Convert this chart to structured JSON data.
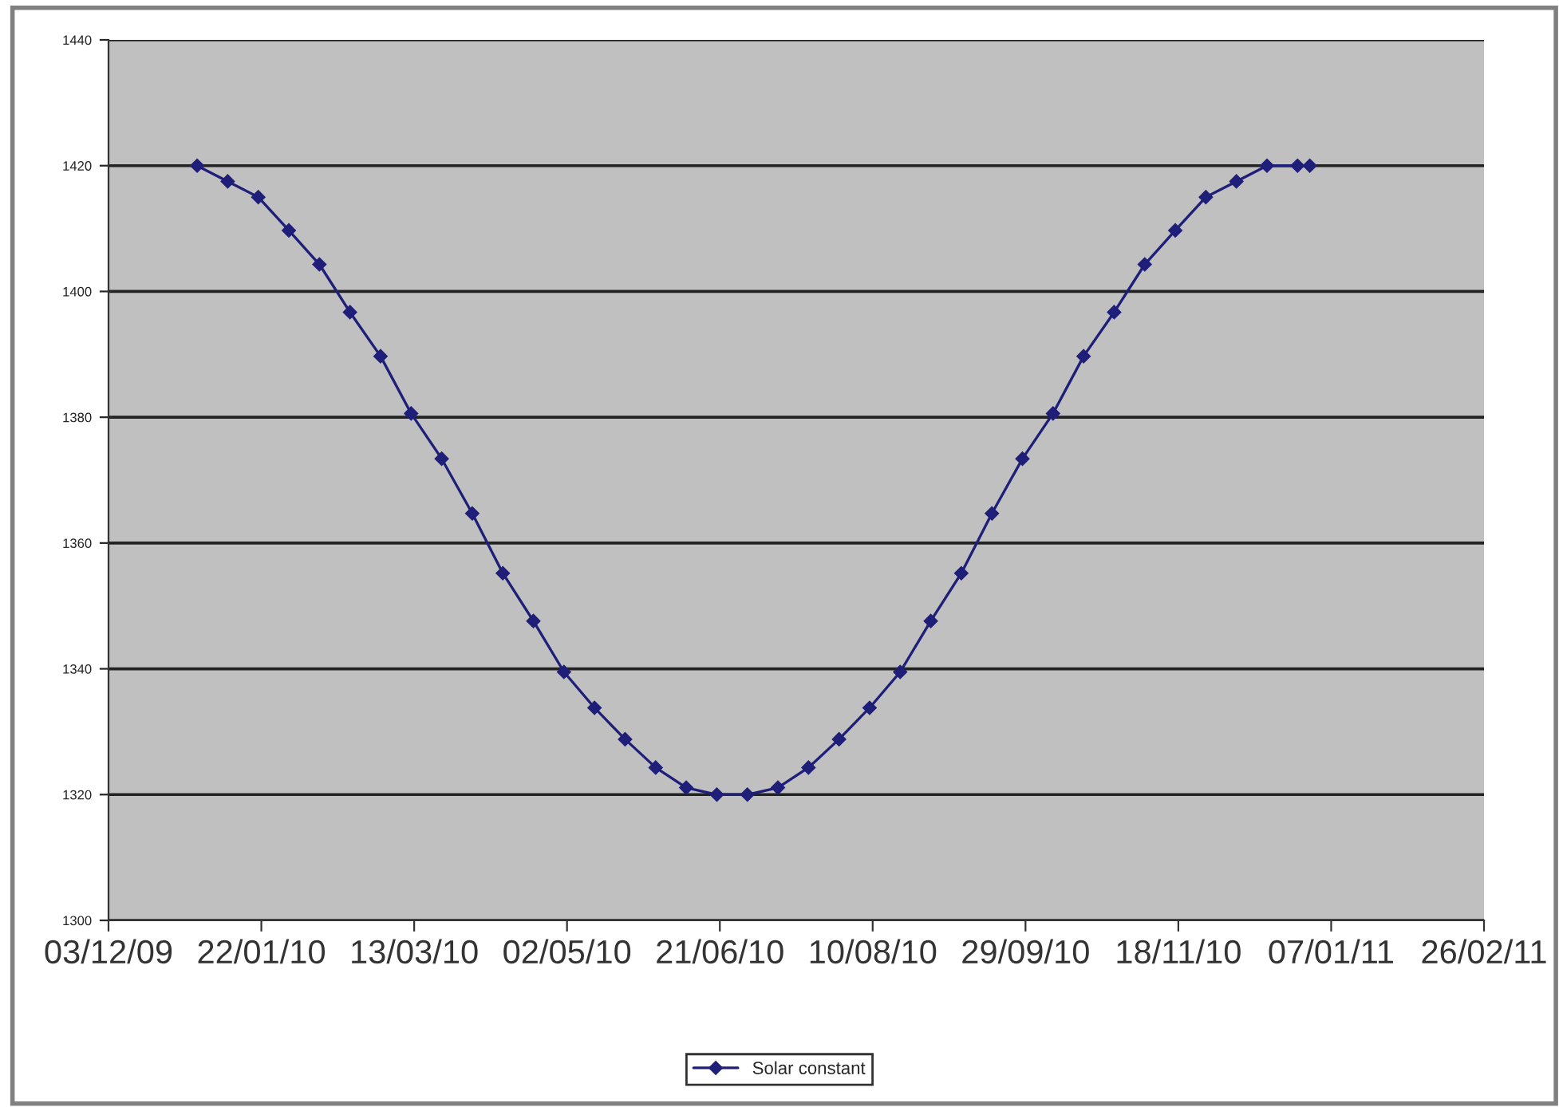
{
  "chart_data": {
    "type": "line",
    "x": [
      "2010-01-01",
      "2010-01-11",
      "2010-01-21",
      "2010-01-31",
      "2010-02-10",
      "2010-02-20",
      "2010-03-02",
      "2010-03-12",
      "2010-03-22",
      "2010-04-01",
      "2010-04-11",
      "2010-04-21",
      "2010-05-01",
      "2010-05-11",
      "2010-05-21",
      "2010-05-31",
      "2010-06-10",
      "2010-06-20",
      "2010-06-30",
      "2010-07-10",
      "2010-07-20",
      "2010-07-30",
      "2010-08-09",
      "2010-08-19",
      "2010-08-29",
      "2010-09-08",
      "2010-09-18",
      "2010-09-28",
      "2010-10-08",
      "2010-10-18",
      "2010-10-28",
      "2010-11-07",
      "2010-11-17",
      "2010-11-27",
      "2010-12-07",
      "2010-12-17",
      "2010-12-27",
      "2010-12-31"
    ],
    "series": [
      {
        "name": "Solar constant",
        "color": "#1f1f7a",
        "values": [
          1420,
          1417.5,
          1415,
          1409.7,
          1404.3,
          1396.7,
          1389.7,
          1380.6,
          1373.4,
          1364.7,
          1355.2,
          1347.6,
          1339.5,
          1333.8,
          1328.8,
          1324.3,
          1321.1,
          1320,
          1320,
          1321.1,
          1324.3,
          1328.8,
          1333.8,
          1339.5,
          1347.6,
          1355.2,
          1364.7,
          1373.4,
          1380.6,
          1389.7,
          1396.7,
          1404.3,
          1409.7,
          1415,
          1417.5,
          1420,
          1420,
          1420
        ]
      }
    ],
    "xlim": [
      "2009-12-03",
      "2011-02-26"
    ],
    "xticks": [
      {
        "value": "2009-12-03",
        "label": "03/12/09"
      },
      {
        "value": "2010-01-22",
        "label": "22/01/10"
      },
      {
        "value": "2010-03-13",
        "label": "13/03/10"
      },
      {
        "value": "2010-05-02",
        "label": "02/05/10"
      },
      {
        "value": "2010-06-21",
        "label": "21/06/10"
      },
      {
        "value": "2010-08-10",
        "label": "10/08/10"
      },
      {
        "value": "2010-09-29",
        "label": "29/09/10"
      },
      {
        "value": "2010-11-18",
        "label": "18/11/10"
      },
      {
        "value": "2011-01-07",
        "label": "07/01/11"
      },
      {
        "value": "2011-02-26",
        "label": "26/02/11"
      }
    ],
    "ylim": [
      1300,
      1440
    ],
    "yticks": [
      1300,
      1320,
      1340,
      1360,
      1380,
      1400,
      1420,
      1440
    ],
    "grid": "y",
    "legend": "bottom",
    "marker": "diamond",
    "line_style": "solid"
  }
}
